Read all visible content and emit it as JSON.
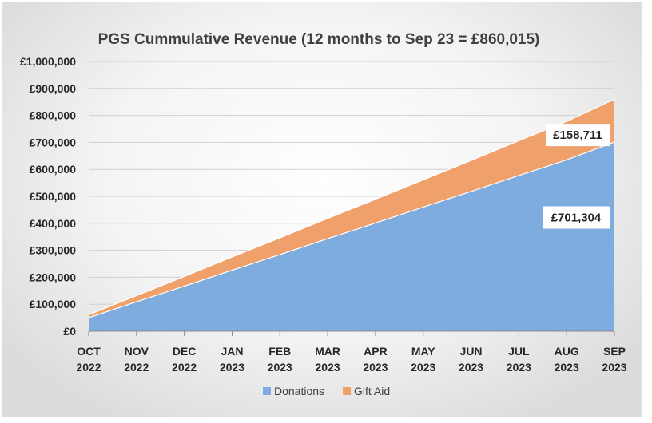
{
  "chart_data": {
    "type": "area",
    "stacked": true,
    "title": "PGS Cummulative Revenue (12 months to Sep 23 = £860,015)",
    "xlabel": "",
    "ylabel": "",
    "categories": [
      [
        "OCT",
        "2022"
      ],
      [
        "NOV",
        "2022"
      ],
      [
        "DEC",
        "2022"
      ],
      [
        "JAN",
        "2023"
      ],
      [
        "FEB",
        "2023"
      ],
      [
        "MAR",
        "2023"
      ],
      [
        "APR",
        "2023"
      ],
      [
        "MAY",
        "2023"
      ],
      [
        "JUN",
        "2023"
      ],
      [
        "JUL",
        "2023"
      ],
      [
        "AUG",
        "2023"
      ],
      [
        "SEP",
        "2023"
      ]
    ],
    "ylim": [
      0,
      1000000
    ],
    "yticks": [
      0,
      100000,
      200000,
      300000,
      400000,
      500000,
      600000,
      700000,
      800000,
      900000,
      1000000
    ],
    "ytick_labels": [
      "£0",
      "£100,000",
      "£200,000",
      "£300,000",
      "£400,000",
      "£500,000",
      "£600,000",
      "£700,000",
      "£800,000",
      "£900,000",
      "£1,000,000"
    ],
    "grid": true,
    "legend_position": "bottom",
    "series": [
      {
        "name": "Donations",
        "color": "#7FACDE",
        "values": [
          50000,
          109000,
          167000,
          226000,
          284000,
          343000,
          401000,
          460000,
          518000,
          577000,
          635000,
          701304
        ]
      },
      {
        "name": "Gift Aid",
        "color": "#F0A06A",
        "values": [
          11000,
          23000,
          36000,
          49000,
          62000,
          75000,
          88000,
          101000,
          115000,
          129000,
          143000,
          158711
        ]
      }
    ],
    "data_labels": [
      {
        "series": "Gift Aid",
        "text": "£158,711"
      },
      {
        "series": "Donations",
        "text": "£701,304"
      }
    ]
  }
}
